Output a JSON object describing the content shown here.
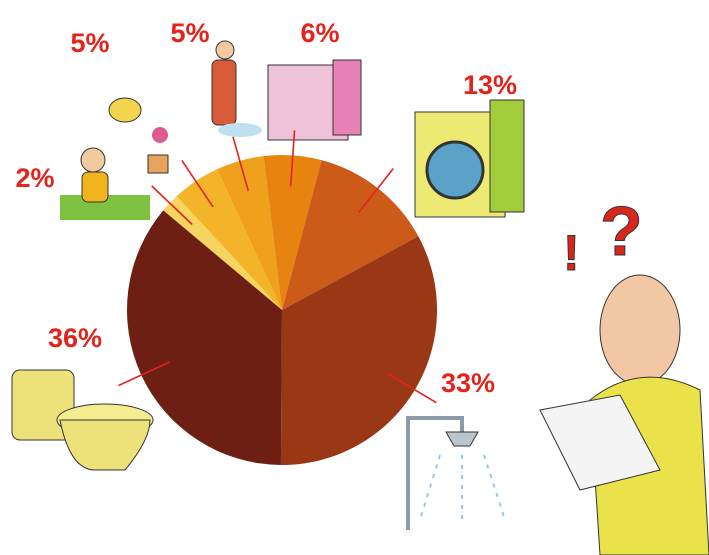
{
  "chart_data": {
    "type": "pie",
    "values": [
      2,
      5,
      5,
      6,
      13,
      33,
      36
    ],
    "value_labels": [
      "2%",
      "5%",
      "5%",
      "6%",
      "13%",
      "33%",
      "36%"
    ],
    "colors": [
      "#f6d55e",
      "#f4b42a",
      "#efa01d",
      "#e6840f",
      "#cc5b1a",
      "#9a3816",
      "#6c1f12"
    ]
  }
}
